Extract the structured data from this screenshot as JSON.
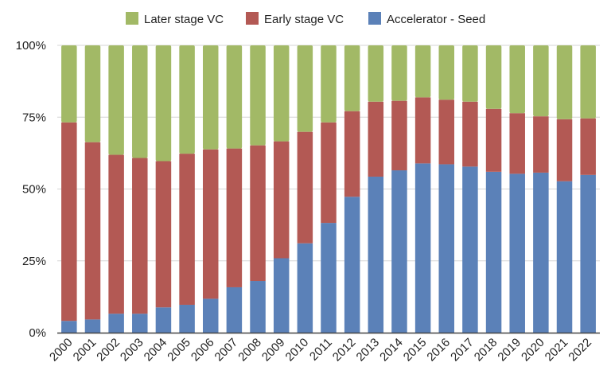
{
  "chart_data": {
    "type": "bar",
    "stacked": true,
    "normalized": true,
    "title": "",
    "xlabel": "",
    "ylabel": "",
    "ylim": [
      0,
      100
    ],
    "y_ticks": [
      "0%",
      "25%",
      "50%",
      "75%",
      "100%"
    ],
    "grid": true,
    "legend_position": "top",
    "categories": [
      "2000",
      "2001",
      "2002",
      "2003",
      "2004",
      "2005",
      "2006",
      "2007",
      "2008",
      "2009",
      "2010",
      "2011",
      "2012",
      "2013",
      "2014",
      "2015",
      "2016",
      "2017",
      "2018",
      "2019",
      "2020",
      "2021",
      "2022"
    ],
    "series": [
      {
        "name": "Accelerator - Seed",
        "color": "#5b81b8",
        "values": [
          4.1,
          4.6,
          6.6,
          6.6,
          8.8,
          9.7,
          11.8,
          15.8,
          18.0,
          25.9,
          31.1,
          38.2,
          47.3,
          54.3,
          56.5,
          58.9,
          58.6,
          57.8,
          56.0,
          55.3,
          55.7,
          52.7,
          54.9
        ]
      },
      {
        "name": "Early stage VC",
        "color": "#b35954",
        "values": [
          69.1,
          61.7,
          55.3,
          54.2,
          50.9,
          52.6,
          52.0,
          48.3,
          47.2,
          40.7,
          38.8,
          35.0,
          29.8,
          26.1,
          24.2,
          23.0,
          22.5,
          22.6,
          21.9,
          21.1,
          19.6,
          21.6,
          19.7
        ]
      },
      {
        "name": "Later stage VC",
        "color": "#a2b966",
        "values": [
          26.8,
          33.7,
          38.1,
          39.2,
          40.3,
          37.7,
          36.2,
          35.9,
          34.8,
          33.4,
          30.1,
          26.8,
          22.9,
          19.6,
          19.3,
          18.1,
          18.9,
          19.6,
          22.1,
          23.6,
          24.7,
          25.7,
          25.4
        ]
      }
    ],
    "legend_order": [
      "Later stage VC",
      "Early stage VC",
      "Accelerator - Seed"
    ]
  }
}
